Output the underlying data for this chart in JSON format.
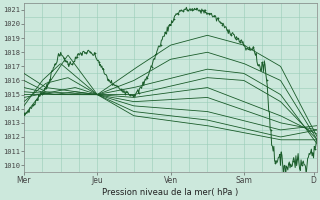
{
  "xlabel": "Pression niveau de la mer( hPa )",
  "ylim": [
    1009.5,
    1021.5
  ],
  "yticks": [
    1010,
    1011,
    1012,
    1013,
    1014,
    1015,
    1016,
    1017,
    1018,
    1019,
    1020,
    1021
  ],
  "xlim": [
    0,
    4.0
  ],
  "xtick_positions": [
    0.0,
    1.0,
    2.0,
    3.0,
    3.95
  ],
  "xtick_labels": [
    "Mer",
    "Jeu",
    "Ven",
    "Sam",
    "D"
  ],
  "background_color": "#cce8dc",
  "grid_color": "#99ccb8",
  "line_color": "#1a5c2a",
  "figwidth": 3.2,
  "figheight": 2.0,
  "dpi": 100,
  "grid_xstep": 0.25,
  "grid_ystep": 1
}
